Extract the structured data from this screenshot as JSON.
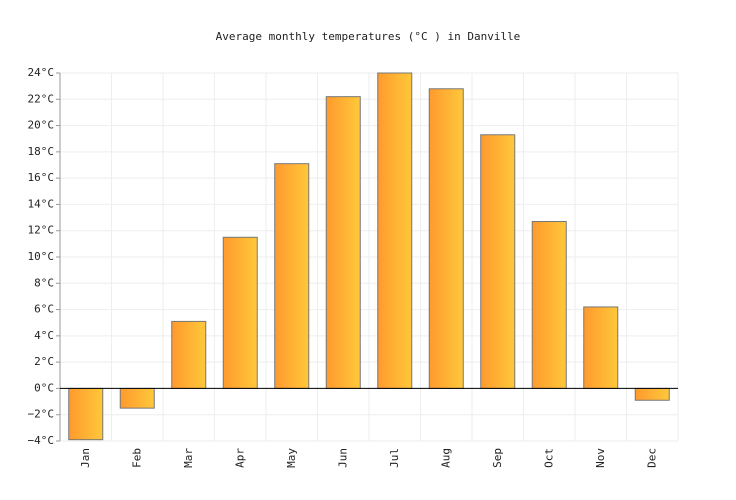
{
  "chart_data": {
    "type": "bar",
    "title": "Average monthly temperatures (°C ) in Danville",
    "categories": [
      "Jan",
      "Feb",
      "Mar",
      "Apr",
      "May",
      "Jun",
      "Jul",
      "Aug",
      "Sep",
      "Oct",
      "Nov",
      "Dec"
    ],
    "values": [
      -3.9,
      -1.5,
      5.1,
      11.5,
      17.1,
      22.2,
      24.0,
      22.8,
      19.3,
      12.7,
      6.2,
      -0.9
    ],
    "color": [
      "#ff9a2e",
      "#ffc83a"
    ],
    "ylim": [
      -4,
      24
    ],
    "yticks": [
      {
        "value": -4,
        "label": "−4°C"
      },
      {
        "value": -2,
        "label": "−2°C"
      },
      {
        "value": 0,
        "label": "0°C"
      },
      {
        "value": 2,
        "label": "2°C"
      },
      {
        "value": 4,
        "label": "4°C"
      },
      {
        "value": 6,
        "label": "6°C"
      },
      {
        "value": 8,
        "label": "8°C"
      },
      {
        "value": 10,
        "label": "10°C"
      },
      {
        "value": 12,
        "label": "12°C"
      },
      {
        "value": 14,
        "label": "14°C"
      },
      {
        "value": 16,
        "label": "16°C"
      },
      {
        "value": 18,
        "label": "18°C"
      },
      {
        "value": 20,
        "label": "20°C"
      },
      {
        "value": 22,
        "label": "22°C"
      },
      {
        "value": 24,
        "label": "24°C"
      }
    ],
    "grid": true
  }
}
